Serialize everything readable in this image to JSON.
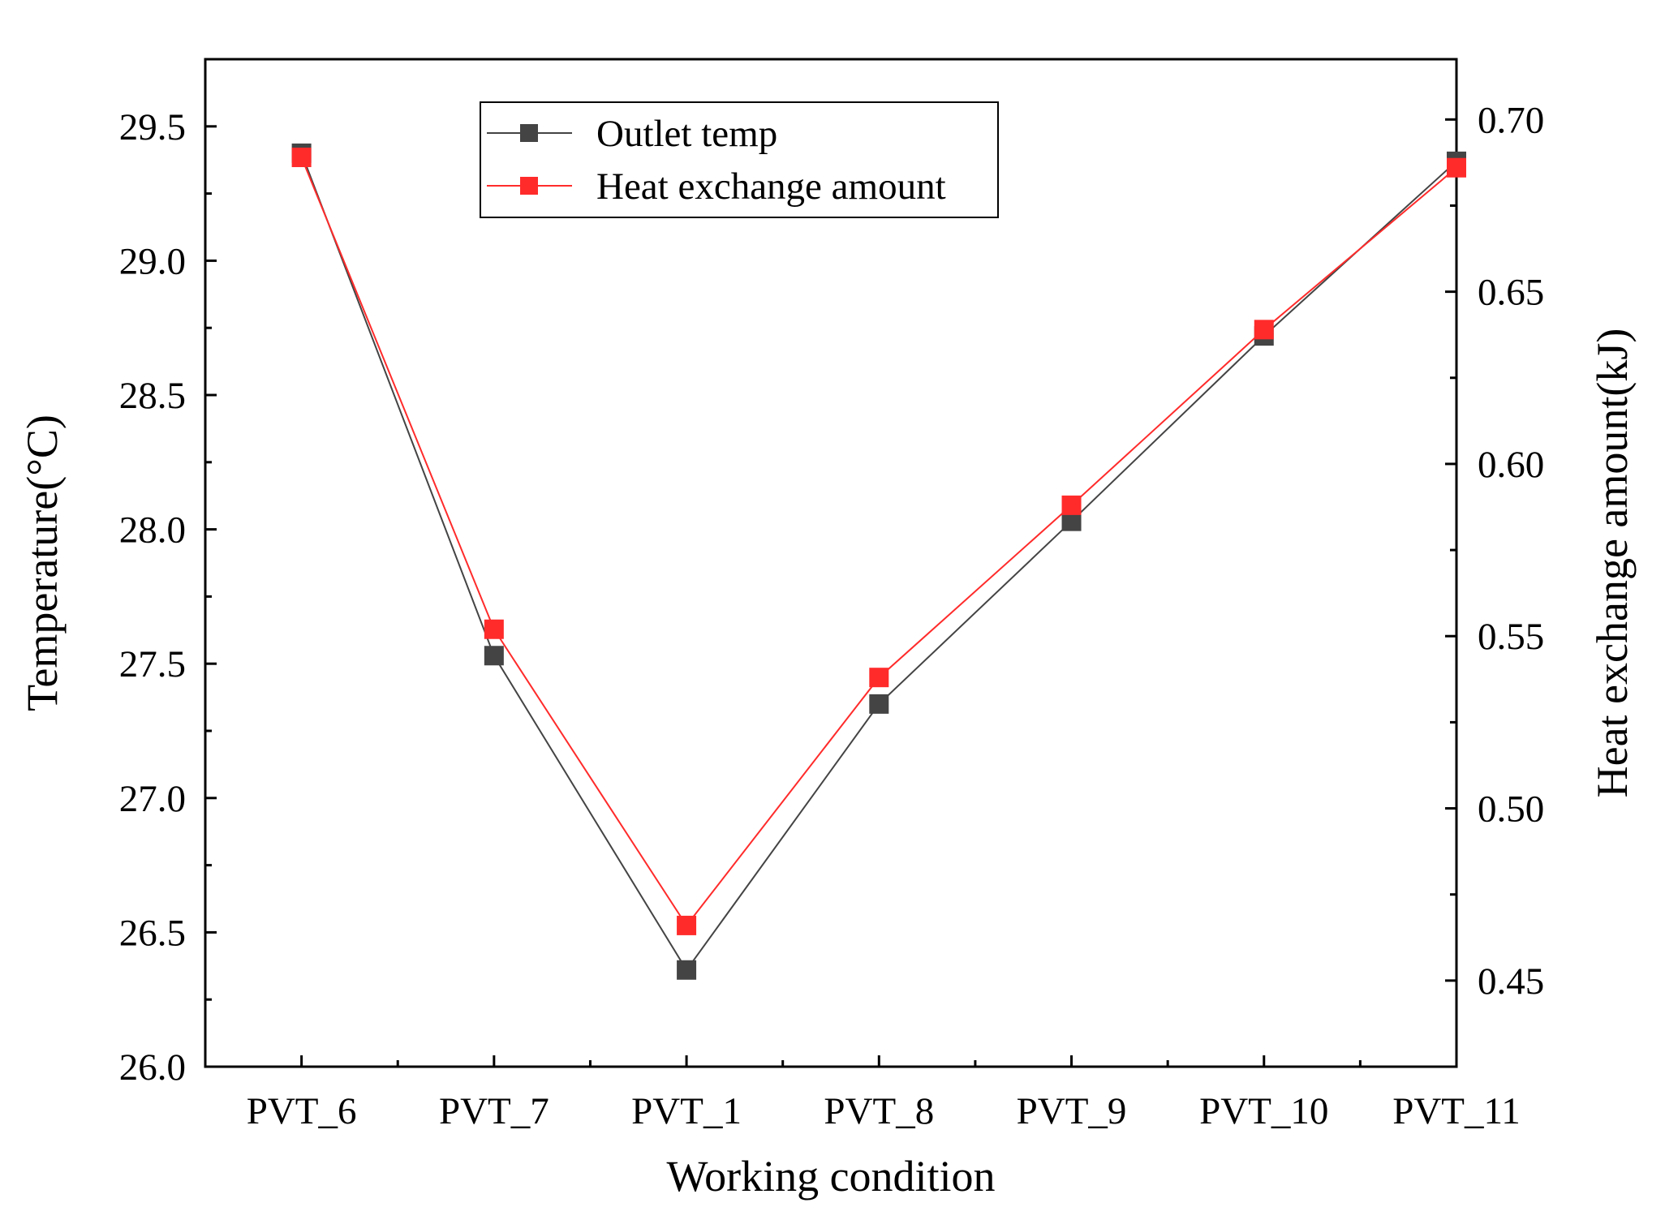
{
  "chart_data": {
    "type": "line",
    "title": "",
    "categories": [
      "PVT_6",
      "PVT_7",
      "PVT_1",
      "PVT_8",
      "PVT_9",
      "PVT_10",
      "PVT_11"
    ],
    "xlabel": "Working condition",
    "ylabel_left": "Temperature(°C)",
    "ylabel_right": "Heat exchange amount(kJ)",
    "y_left": {
      "lim": [
        26.0,
        29.75
      ],
      "ticks": [
        26.0,
        26.5,
        27.0,
        27.5,
        28.0,
        28.5,
        29.0,
        29.5
      ],
      "tick_labels": [
        "26.0",
        "26.5",
        "27.0",
        "27.5",
        "28.0",
        "28.5",
        "29.0",
        "29.5"
      ]
    },
    "y_right": {
      "lim": [
        0.425,
        0.7175
      ],
      "ticks": [
        0.45,
        0.5,
        0.55,
        0.6,
        0.65,
        0.7
      ],
      "tick_labels": [
        "0.45",
        "0.50",
        "0.55",
        "0.60",
        "0.65",
        "0.70"
      ]
    },
    "series": [
      {
        "name": "Outlet temp",
        "axis": "left",
        "color": "#444444",
        "values": [
          29.4,
          27.53,
          26.36,
          27.35,
          28.03,
          28.72,
          29.37
        ]
      },
      {
        "name": "Heat exchange amount",
        "axis": "right",
        "color": "#ff2b2b",
        "values": [
          0.689,
          0.552,
          0.466,
          0.538,
          0.588,
          0.639,
          0.686
        ]
      }
    ],
    "legend": {
      "placement": "top-center",
      "entries": [
        "Outlet temp",
        "Heat exchange amount"
      ]
    },
    "grid": false
  }
}
